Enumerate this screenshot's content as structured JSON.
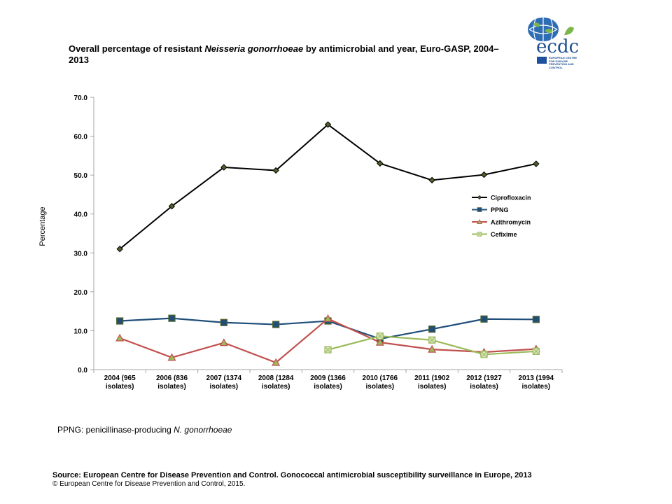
{
  "title": {
    "prefix": "Overall percentage of resistant ",
    "italic": "Neisseria  gonorrhoeae",
    "suffix": " by antimicrobial  and year, Euro-GASP, 2004–2013"
  },
  "logo": {
    "text": "ecdc",
    "subtitle": "EUROPEAN CENTRE FOR DISEASE PREVENTION AND CONTROL"
  },
  "footnote": {
    "prefix": "PPNG: penicillinase-producing ",
    "italic": "N. gonorrhoeae"
  },
  "source": "Source: European Centre for Disease Prevention and Control.  Gonococcal antimicrobial susceptibility surveillance in Europe, 2013",
  "copyright": "© European Centre for Disease Prevention and Control, 2015.",
  "chart_data": {
    "type": "line",
    "title": "",
    "xlabel": "",
    "ylabel": "Percentage",
    "ylim": [
      0,
      70
    ],
    "yticks": [
      "0.0",
      "10.0",
      "20.0",
      "30.0",
      "40.0",
      "50.0",
      "60.0",
      "70.0"
    ],
    "grid": false,
    "legend_position": "right",
    "categories": [
      [
        "2004 (965",
        "isolates)"
      ],
      [
        "2006 (836",
        "isolates)"
      ],
      [
        "2007 (1374",
        "isolates)"
      ],
      [
        "2008 (1284",
        "isolates)"
      ],
      [
        "2009 (1366",
        "isolates)"
      ],
      [
        "2010 (1766",
        "isolates)"
      ],
      [
        "2011 (1902",
        "isolates)"
      ],
      [
        "2012 (1927",
        "isolates)"
      ],
      [
        "2013 (1994",
        "isolates)"
      ]
    ],
    "series": [
      {
        "name": "Ciprofloxacin",
        "color": "#000000",
        "marker": "diamond",
        "values": [
          31.0,
          42.0,
          52.0,
          51.2,
          63.0,
          53.0,
          48.7,
          50.1,
          52.9
        ]
      },
      {
        "name": "PPNG",
        "color": "#1f4e79",
        "marker": "square",
        "values": [
          12.5,
          13.2,
          12.1,
          11.6,
          12.5,
          7.9,
          10.4,
          13.0,
          12.9
        ]
      },
      {
        "name": "Azithromycin",
        "color": "#c0504d",
        "marker": "triangle",
        "values": [
          8.1,
          3.1,
          6.9,
          1.8,
          13.1,
          7.0,
          5.2,
          4.5,
          5.3
        ]
      },
      {
        "name": "Cefixime",
        "color": "#9bbb59",
        "marker": "square-x",
        "values": [
          null,
          null,
          null,
          null,
          5.1,
          8.6,
          7.6,
          3.9,
          4.7
        ]
      }
    ]
  }
}
